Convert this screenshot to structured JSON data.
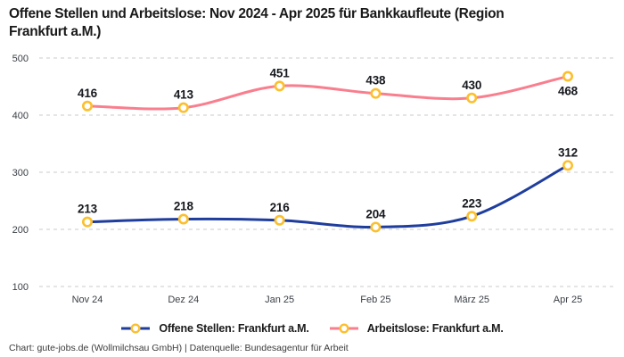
{
  "header": {
    "title_lines": [
      "Offene Stellen und Arbeitslose: Nov 2024 - Apr 2025 für Bankkaufleute (Region",
      "Frankfurt a.M.)"
    ]
  },
  "chart_data": {
    "type": "line",
    "title": "Offene Stellen und Arbeitslose: Nov 2024 - Apr 2025 für Bankkaufleute (Region Frankfurt a.M.)",
    "categories": [
      "Nov 24",
      "Dez 24",
      "Jan 25",
      "Feb 25",
      "März 25",
      "Apr 25"
    ],
    "series": [
      {
        "name": "Offene Stellen: Frankfurt a.M.",
        "values": [
          213,
          218,
          216,
          204,
          223,
          312
        ],
        "color": "#1f3d9d",
        "label_positions": [
          "above",
          "above",
          "above",
          "above",
          "above",
          "above"
        ]
      },
      {
        "name": "Arbeitslose: Frankfurt a.M.",
        "values": [
          416,
          413,
          451,
          438,
          430,
          468
        ],
        "color": "#f97e8e",
        "label_positions": [
          "above",
          "above",
          "above",
          "above",
          "above",
          "below"
        ]
      }
    ],
    "marker_color": "#fcbf2d",
    "y_ticks": [
      100,
      200,
      300,
      400,
      500
    ],
    "ylim": [
      100,
      500
    ],
    "xlabel": "",
    "ylabel": "",
    "grid": "horizontal-dashed",
    "legend_position": "bottom-center"
  },
  "colors": {
    "grid": "#cbcbcb",
    "axis_text": "#3a3f46",
    "data_label_text": "#15181d",
    "marker_fill": "#ffffff",
    "background": "#ffffff"
  },
  "footer": {
    "credit": "Chart: gute-jobs.de (Wollmilchsau GmbH) | Datenquelle: Bundesagentur für Arbeit"
  }
}
